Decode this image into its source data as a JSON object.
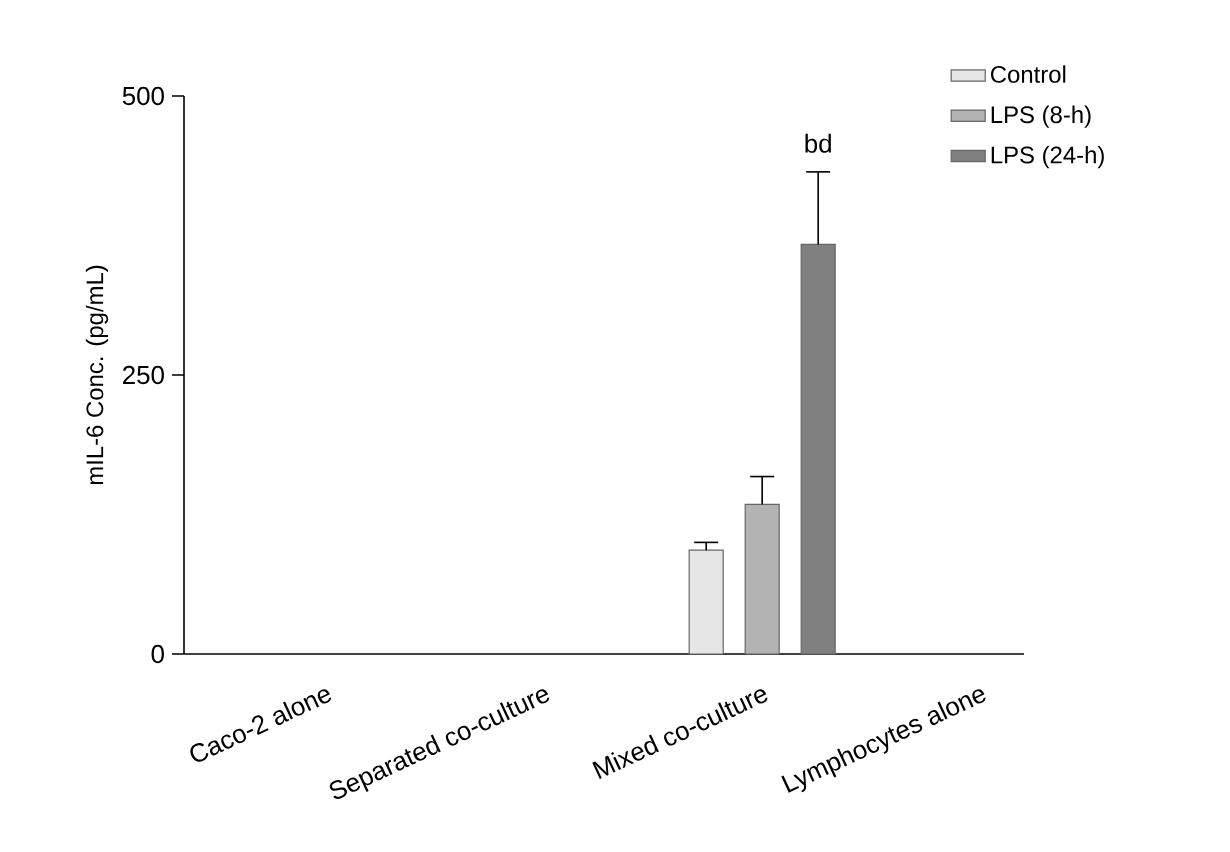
{
  "chart_data": {
    "type": "bar",
    "ylabel": "mIL-6 Conc. (pg/mL)",
    "categories": [
      "Caco-2 alone",
      "Separated co-culture",
      "Mixed co-culture",
      "Lymphocytes alone"
    ],
    "series": [
      {
        "name": "Control",
        "color": "#e6e6e6",
        "values": [
          null,
          null,
          93,
          null
        ],
        "errors": [
          null,
          null,
          7,
          null
        ]
      },
      {
        "name": "LPS (8-h)",
        "color": "#b3b3b3",
        "values": [
          null,
          null,
          134,
          null
        ],
        "errors": [
          null,
          null,
          25,
          null
        ]
      },
      {
        "name": "LPS (24-h)",
        "color": "#808080",
        "values": [
          null,
          null,
          367,
          null
        ],
        "errors": [
          null,
          null,
          65,
          null
        ]
      }
    ],
    "ylim": [
      0,
      500
    ],
    "yticks": [
      0,
      250,
      500
    ],
    "legend": "top right",
    "grid": false,
    "annotations": [
      "bd"
    ]
  }
}
